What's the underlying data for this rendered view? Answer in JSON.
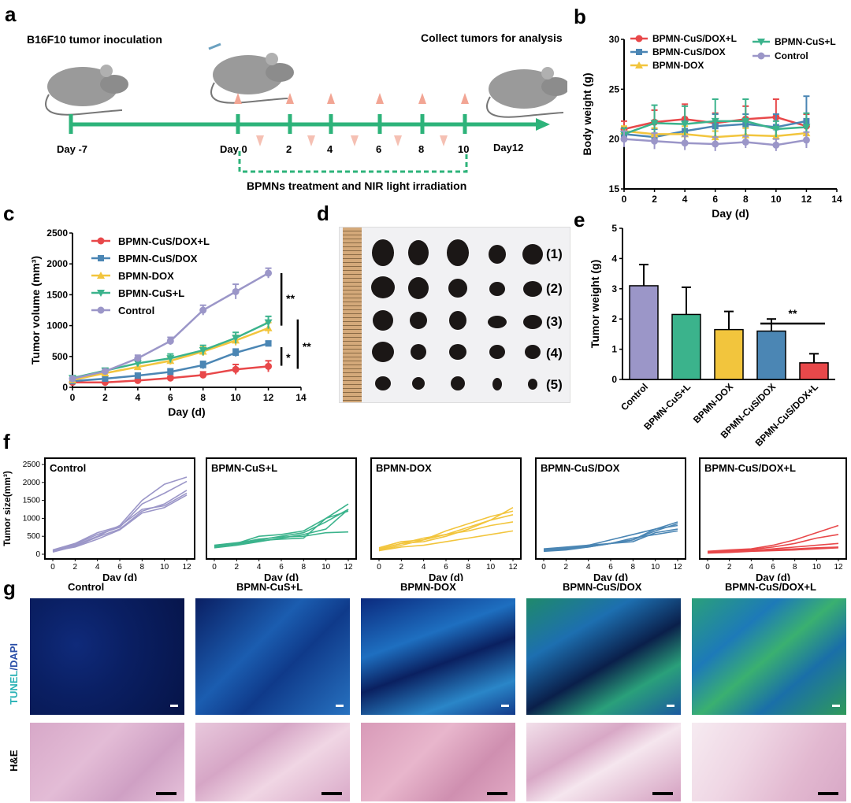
{
  "panels": {
    "a": "a",
    "b": "b",
    "c": "c",
    "d": "d",
    "e": "e",
    "f": "f",
    "g": "g"
  },
  "timeline": {
    "inoculation": "B16F10 tumor inoculation",
    "collect": "Collect tumors for analysis",
    "day_minus7": "Day -7",
    "day0": "Day 0",
    "day12": "Day12",
    "ticks": [
      "2",
      "4",
      "6",
      "8",
      "10"
    ],
    "treatment": "BPMNs treatment and NIR light irradiation"
  },
  "colors": {
    "red": "#e8484a",
    "blue": "#4b86b4",
    "yellow": "#f2c53d",
    "green": "#3bb38c",
    "purple": "#9b96c8",
    "timeline": "#2db37a"
  },
  "chart_data": [
    {
      "id": "b",
      "type": "line",
      "ylabel": "Body weight (g)",
      "xlabel": "Day (d)",
      "xlim": [
        0,
        14
      ],
      "ylim": [
        15,
        30
      ],
      "xticks": [
        "0",
        "2",
        "4",
        "6",
        "8",
        "10",
        "12",
        "14"
      ],
      "yticks": [
        "15",
        "20",
        "25",
        "30"
      ],
      "x": [
        0,
        2,
        4,
        6,
        8,
        10,
        12
      ],
      "legend": [
        "BPMN-CuS/DOX+L",
        "BPMN-CuS/DOX",
        "BPMN-DOX",
        "BPMN-CuS+L",
        "Control"
      ],
      "series": [
        {
          "name": "BPMN-CuS/DOX+L",
          "color": "#e8484a",
          "values": [
            21,
            21.7,
            22,
            21.6,
            22,
            22.2,
            21.3
          ],
          "err": [
            0.8,
            1.2,
            1.5,
            1.0,
            1.3,
            1.8,
            1.2
          ]
        },
        {
          "name": "BPMN-CuS/DOX",
          "color": "#4b86b4",
          "values": [
            20.5,
            20.2,
            20.8,
            21.3,
            21.5,
            21.2,
            21.8
          ],
          "err": [
            0.6,
            0.8,
            1.0,
            1.2,
            1.0,
            1.3,
            2.5
          ]
        },
        {
          "name": "BPMN-DOX",
          "color": "#f2c53d",
          "values": [
            20.8,
            20.5,
            20.5,
            20.2,
            20.4,
            20.3,
            20.6
          ],
          "err": [
            0.5,
            0.6,
            0.8,
            0.6,
            0.7,
            0.7,
            0.8
          ]
        },
        {
          "name": "BPMN-CuS+L",
          "color": "#3bb38c",
          "values": [
            20.5,
            21.6,
            21.5,
            21.8,
            21.8,
            21,
            21.2
          ],
          "err": [
            0.6,
            1.8,
            1.8,
            2.2,
            2.2,
            0.8,
            1.4
          ]
        },
        {
          "name": "Control",
          "color": "#9b96c8",
          "values": [
            20,
            19.8,
            19.6,
            19.5,
            19.7,
            19.4,
            19.9
          ],
          "err": [
            0.8,
            0.8,
            0.7,
            0.7,
            0.6,
            0.6,
            0.8
          ]
        }
      ]
    },
    {
      "id": "c",
      "type": "line",
      "ylabel": "Tumor volume (mm³)",
      "xlabel": "Day (d)",
      "xlim": [
        0,
        14
      ],
      "ylim": [
        0,
        2500
      ],
      "xticks": [
        "0",
        "2",
        "4",
        "6",
        "8",
        "10",
        "12",
        "14"
      ],
      "yticks": [
        "0",
        "500",
        "1000",
        "1500",
        "2000",
        "2500"
      ],
      "x": [
        0,
        2,
        4,
        6,
        8,
        10,
        12
      ],
      "legend": [
        "BPMN-CuS/DOX+L",
        "BPMN-CuS/DOX",
        "BPMN-DOX",
        "BPMN-CuS+L",
        "Control"
      ],
      "series": [
        {
          "name": "BPMN-CuS/DOX+L",
          "color": "#e8484a",
          "values": [
            80,
            80,
            110,
            150,
            200,
            290,
            340
          ],
          "err": [
            20,
            20,
            30,
            30,
            50,
            80,
            90
          ]
        },
        {
          "name": "BPMN-CuS/DOX",
          "color": "#4b86b4",
          "values": [
            100,
            140,
            190,
            250,
            360,
            560,
            710
          ],
          "err": [
            20,
            30,
            40,
            50,
            60,
            60,
            40
          ]
        },
        {
          "name": "BPMN-DOX",
          "color": "#f2c53d",
          "values": [
            120,
            230,
            330,
            430,
            580,
            760,
            960
          ],
          "err": [
            20,
            40,
            50,
            60,
            70,
            80,
            90
          ]
        },
        {
          "name": "BPMN-CuS+L",
          "color": "#3bb38c",
          "values": [
            150,
            270,
            390,
            470,
            600,
            800,
            1050
          ],
          "err": [
            20,
            40,
            50,
            70,
            80,
            90,
            100
          ]
        },
        {
          "name": "Control",
          "color": "#9b96c8",
          "values": [
            140,
            260,
            470,
            750,
            1250,
            1550,
            1850
          ],
          "err": [
            20,
            30,
            50,
            60,
            80,
            120,
            80
          ]
        }
      ],
      "annotations": [
        "**",
        "*",
        "**"
      ]
    },
    {
      "id": "e",
      "type": "bar",
      "ylabel": "Tumor weight (g)",
      "ylim": [
        0,
        5
      ],
      "yticks": [
        "0",
        "1",
        "2",
        "3",
        "4",
        "5"
      ],
      "categories": [
        "Control",
        "BPMN-CuS+L",
        "BPMN-DOX",
        "BPMN-CuS/DOX",
        "BPMN-CuS/DOX+L"
      ],
      "values": [
        3.1,
        2.15,
        1.65,
        1.6,
        0.55
      ],
      "err": [
        0.7,
        0.9,
        0.6,
        0.4,
        0.3
      ],
      "colors": [
        "#9b96c8",
        "#3bb38c",
        "#f2c53d",
        "#4b86b4",
        "#e8484a"
      ],
      "annotation": "**"
    },
    {
      "id": "f",
      "type": "line",
      "ylabel": "Tumor size(mm³)",
      "xlabel": "Day (d)",
      "ylim": [
        0,
        2500
      ],
      "yticks": [
        "0",
        "500",
        "1000",
        "1500",
        "2000",
        "2500"
      ],
      "xticks": [
        "0",
        "2",
        "4",
        "6",
        "8",
        "10",
        "12"
      ],
      "x": [
        0,
        2,
        4,
        6,
        8,
        10,
        12
      ],
      "groups": [
        {
          "name": "Control",
          "color": "#9b96c8",
          "lines": [
            [
              80,
              250,
              500,
              800,
              1500,
              1950,
              2150
            ],
            [
              100,
              280,
              550,
              750,
              1400,
              1700,
              2030
            ],
            [
              60,
              220,
              480,
              700,
              1200,
              1400,
              1780
            ],
            [
              120,
              300,
              600,
              780,
              1250,
              1350,
              1700
            ],
            [
              90,
              200,
              420,
              680,
              1150,
              1300,
              1650
            ]
          ]
        },
        {
          "name": "BPMN-CuS+L",
          "color": "#3bb38c",
          "lines": [
            [
              200,
              300,
              500,
              550,
              650,
              1000,
              1400
            ],
            [
              250,
              320,
              400,
              500,
              600,
              900,
              1250
            ],
            [
              220,
              280,
              380,
              420,
              450,
              1000,
              1200
            ],
            [
              180,
              250,
              350,
              450,
              550,
              700,
              1250
            ],
            [
              230,
              300,
              420,
              480,
              500,
              600,
              620
            ]
          ]
        },
        {
          "name": "BPMN-DOX",
          "color": "#f2c53d",
          "lines": [
            [
              150,
              300,
              450,
              550,
              750,
              950,
              1300
            ],
            [
              100,
              250,
              400,
              650,
              850,
              1050,
              1200
            ],
            [
              120,
              300,
              350,
              500,
              700,
              950,
              1100
            ],
            [
              180,
              350,
              400,
              550,
              650,
              800,
              900
            ],
            [
              100,
              200,
              250,
              350,
              450,
              550,
              650
            ]
          ]
        },
        {
          "name": "BPMN-CuS/DOX",
          "color": "#4b86b4",
          "lines": [
            [
              100,
              150,
              250,
              400,
              550,
              700,
              900
            ],
            [
              80,
              120,
              200,
              300,
              400,
              650,
              850
            ],
            [
              150,
              200,
              250,
              300,
              400,
              700,
              800
            ],
            [
              120,
              180,
              220,
              300,
              350,
              600,
              700
            ],
            [
              90,
              150,
              200,
              300,
              450,
              550,
              650
            ]
          ]
        },
        {
          "name": "BPMN-CuS/DOX+L",
          "color": "#e8484a",
          "lines": [
            [
              80,
              120,
              150,
              250,
              400,
              600,
              800
            ],
            [
              60,
              100,
              130,
              200,
              300,
              450,
              550
            ],
            [
              50,
              80,
              100,
              150,
              200,
              250,
              300
            ],
            [
              40,
              70,
              100,
              120,
              150,
              180,
              200
            ],
            [
              30,
              50,
              80,
              100,
              120,
              150,
              180
            ]
          ]
        }
      ]
    }
  ],
  "photo": {
    "labels": [
      "(1)",
      "(2)",
      "(3)",
      "(4)",
      "(5)"
    ]
  },
  "histology": {
    "groups": [
      "Control",
      "BPMN-CuS+L",
      "BPMN-DOX",
      "BPMN-CuS/DOX",
      "BPMN-CuS/DOX+L"
    ],
    "row1_a": "TUNEL",
    "row1_b": "/DAPI",
    "row2": "H&E"
  }
}
